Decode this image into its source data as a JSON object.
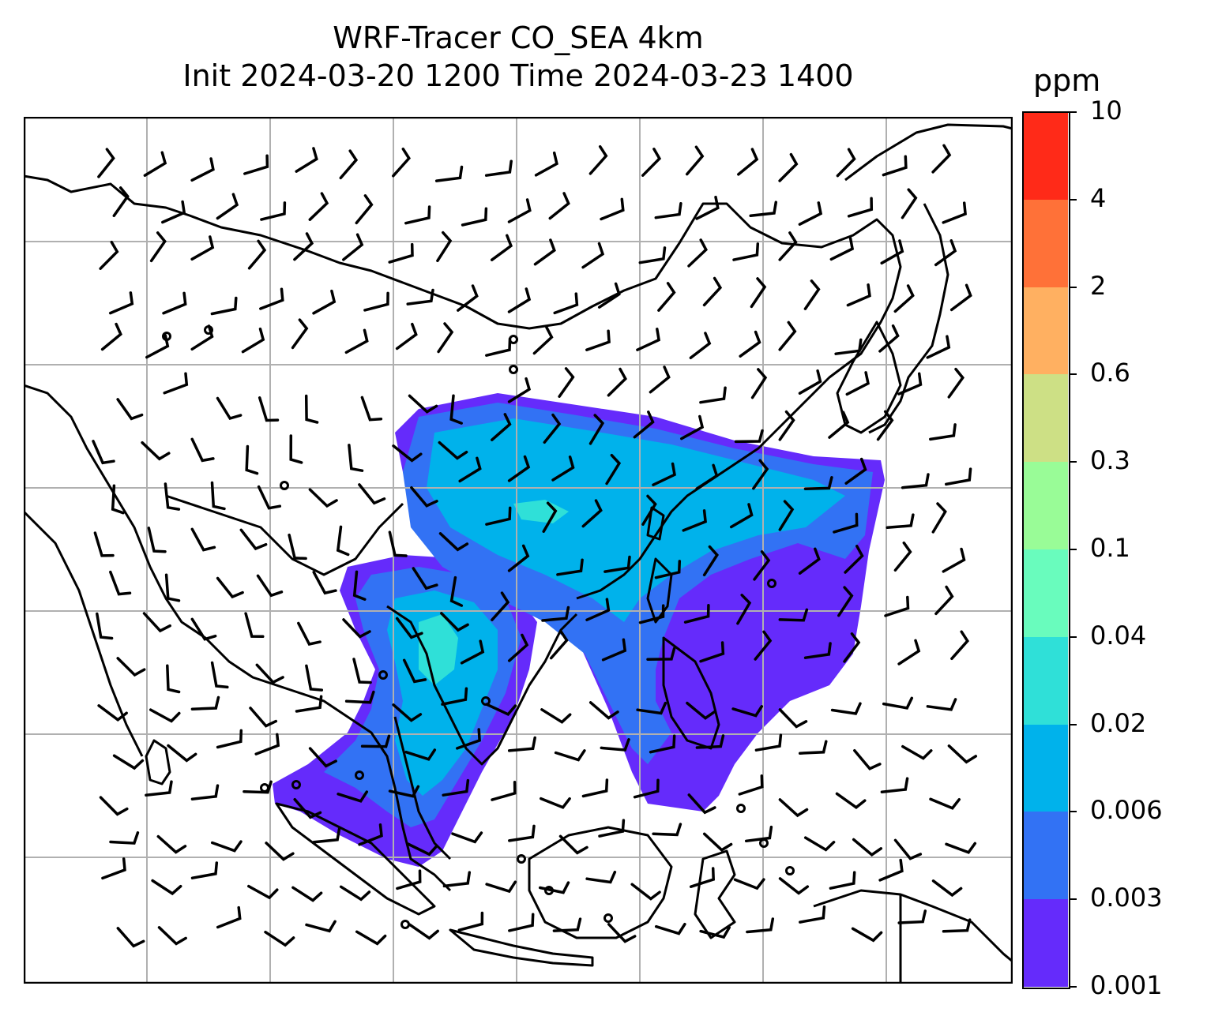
{
  "title": {
    "line1": "WRF-Tracer CO_SEA 4km",
    "line2": "Init 2024-03-20 1200 Time 2024-03-23 1400"
  },
  "colorbar": {
    "unit": "ppm",
    "levels": [
      "0.001",
      "0.003",
      "0.006",
      "0.02",
      "0.04",
      "0.1",
      "0.3",
      "0.6",
      "2",
      "4",
      "10"
    ],
    "colors": [
      "#652bfb",
      "#3272f4",
      "#00b2eb",
      "#2fe0d8",
      "#69fcbd",
      "#99fc97",
      "#cde085",
      "#ffb061",
      "#ff7138",
      "#ff2a18"
    ]
  },
  "map": {
    "region": "Southeast Asia",
    "gridlines": true,
    "wind_barbs": true,
    "coastline_color": "#000000",
    "grid_color": "#b0b0b0"
  }
}
